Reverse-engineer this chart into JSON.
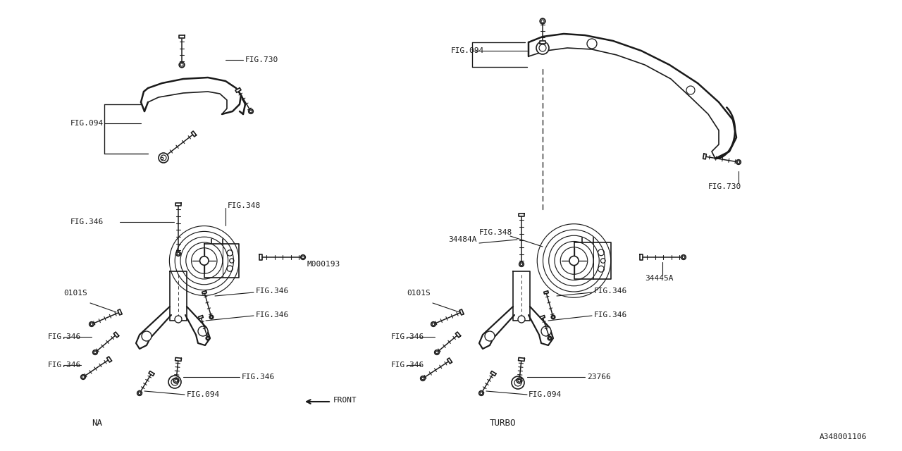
{
  "bg_color": "#ffffff",
  "line_color": "#1a1a1a",
  "part_id": "A348001106",
  "fig_size": [
    12.8,
    6.4
  ],
  "dpi": 100,
  "left_label": "NA",
  "right_label": "TURBO",
  "font_name": "DejaVu Sans Mono"
}
